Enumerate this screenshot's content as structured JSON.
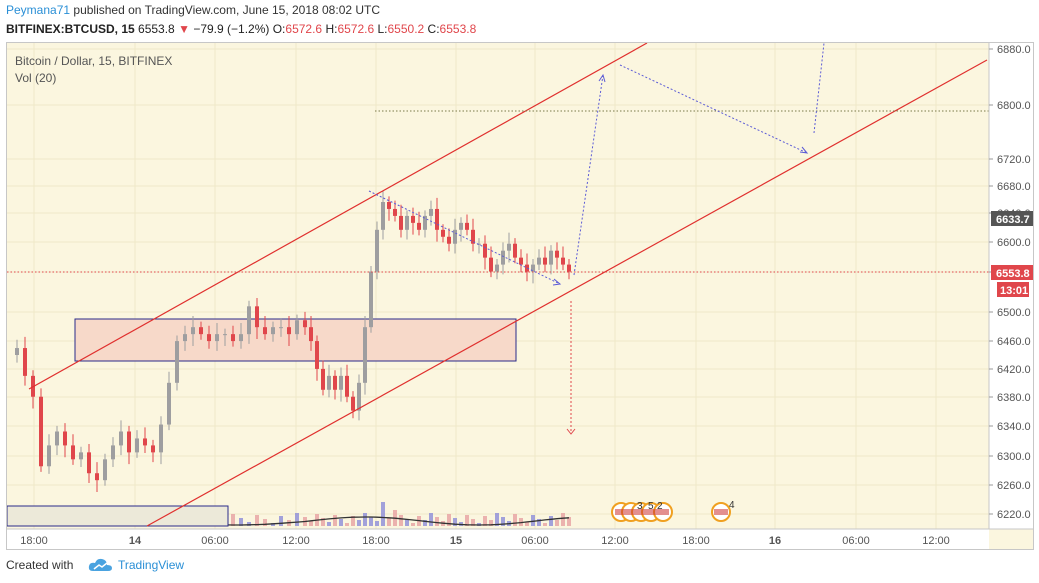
{
  "header": {
    "author": "Peymana71",
    "published": "published on TradingView.com, June 15, 2018 08:02 UTC",
    "symbol": "BITFINEX:BTCUSD, 15",
    "last": "6553.8",
    "change": "−79.9 (−1.2%)",
    "o_label": "O:",
    "o_value": "6572.6",
    "h_label": "H:",
    "h_value": "6572.6",
    "l_label": "L:",
    "l_value": "6550.2",
    "c_label": "C:",
    "c_value": "6553.8"
  },
  "legend": {
    "title": "Bitcoin / Dollar, 15, BITFINEX",
    "volume": "Vol (20)"
  },
  "price_axis": {
    "ticks": [
      "6880.0",
      "6800.0",
      "6720.0",
      "6680.0",
      "6640.0",
      "6600.0",
      "6550.0",
      "6500.0",
      "6460.0",
      "6420.0",
      "6380.0",
      "6340.0",
      "6300.0",
      "6260.0",
      "6220.0"
    ],
    "tick_values": [
      6880,
      6800,
      6720,
      6680,
      6640,
      6600,
      6550,
      6500,
      6460,
      6420,
      6380,
      6340,
      6300,
      6260,
      6220
    ],
    "current_price": "6553.8",
    "countdown": "13:01",
    "marker_price": "6633.7"
  },
  "time_axis": {
    "labels": [
      "18:00",
      "14",
      "06:00",
      "12:00",
      "18:00",
      "15",
      "06:00",
      "12:00",
      "18:00",
      "16",
      "06:00",
      "12:00"
    ]
  },
  "events": [
    {
      "flag": "us-flag-icon",
      "label": "3"
    },
    {
      "flag": "us-flag-icon",
      "label": "5"
    },
    {
      "flag": "us-flag-icon",
      "label": "2"
    },
    {
      "flag": "us-flag-icon",
      "label": "4"
    }
  ],
  "colors": {
    "background": "#fbf6df",
    "up": "#9e9ea0",
    "down": "#e0464b",
    "channel": "#e0302e",
    "box_border": "#2a2a8a",
    "box_fill": "#f7d9c9",
    "projection": "#5b5bd6",
    "current_tag": "#e0464b",
    "marker_tag": "#555555"
  },
  "footer": {
    "created": "Created with",
    "brand": "TradingView"
  }
}
